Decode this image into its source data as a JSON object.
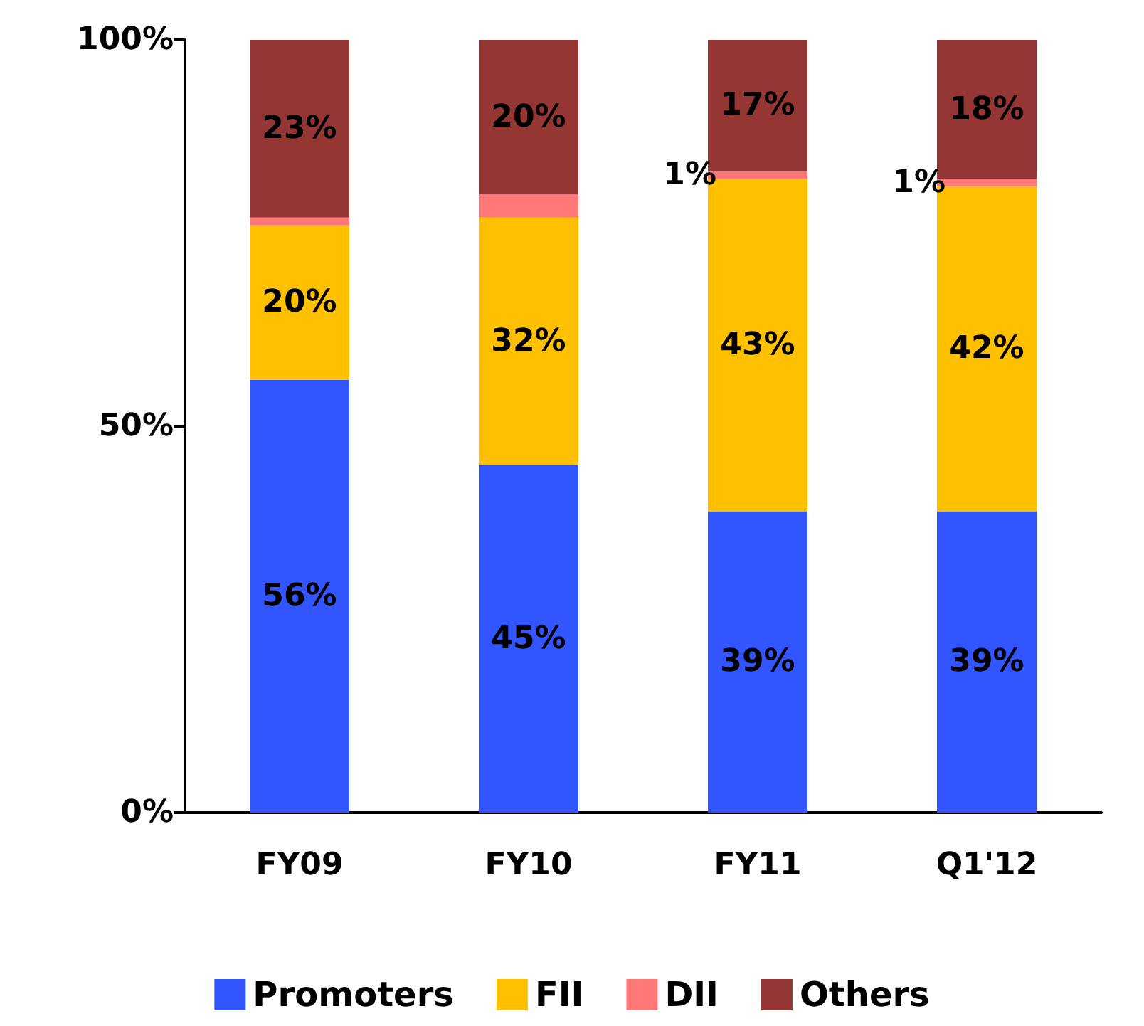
{
  "chart_data": {
    "type": "bar",
    "stacked": true,
    "categories": [
      "FY09",
      "FY10",
      "FY11",
      "Q1'12"
    ],
    "series": [
      {
        "name": "Promoters",
        "color": "#3355ff",
        "values": [
          56,
          45,
          39,
          39
        ],
        "value_labels": [
          "56%",
          "45%",
          "39%",
          "39%"
        ]
      },
      {
        "name": "FII",
        "color": "#ffc000",
        "values": [
          20,
          32,
          43,
          42
        ],
        "value_labels": [
          "20%",
          "32%",
          "43%",
          "42%"
        ]
      },
      {
        "name": "DII",
        "color": "#ff7777",
        "values": [
          1,
          3,
          1,
          1
        ],
        "value_labels": [
          null,
          null,
          "1%",
          "1%"
        ]
      },
      {
        "name": "Others",
        "color": "#943634",
        "values": [
          23,
          20,
          17,
          18
        ],
        "value_labels": [
          "23%",
          "20%",
          "17%",
          "18%"
        ]
      }
    ],
    "ylim": [
      0,
      100
    ],
    "yticks": [
      {
        "value": 0,
        "label": "0%"
      },
      {
        "value": 50,
        "label": "50%"
      },
      {
        "value": 100,
        "label": "100%"
      }
    ],
    "grid": false,
    "legend": "bottom"
  }
}
